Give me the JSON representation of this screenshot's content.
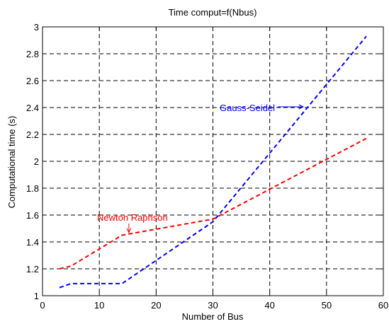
{
  "chart_data": {
    "type": "line",
    "title": "Time comput=f(Nbus)",
    "xlabel": "Number of Bus",
    "ylabel": "Computational time (s)",
    "xlim": [
      0,
      60
    ],
    "ylim": [
      1,
      3
    ],
    "xticks": [
      0,
      10,
      20,
      30,
      40,
      50,
      60
    ],
    "yticks": [
      1,
      1.2,
      1.4,
      1.6,
      1.8,
      2,
      2.2,
      2.4,
      2.6,
      2.8,
      3
    ],
    "grid": true,
    "series": [
      {
        "name": "Gauss-Seidel",
        "color": "#0000ff",
        "x": [
          3,
          5,
          14,
          30,
          57
        ],
        "y": [
          1.06,
          1.09,
          1.09,
          1.55,
          2.93
        ]
      },
      {
        "name": "Newton Raphson",
        "color": "#ff0000",
        "x": [
          3,
          5,
          14,
          30,
          57
        ],
        "y": [
          1.2,
          1.22,
          1.45,
          1.57,
          2.17
        ]
      }
    ],
    "annotations": [
      {
        "series": "Gauss-Seidel",
        "text": "Gauss-Seidel",
        "color": "#0000ff",
        "x": 45,
        "y": 2.4
      },
      {
        "series": "Newton Raphson",
        "text": "Newton Raphson",
        "color": "#ff0000",
        "x": 15.2,
        "y": 1.46
      }
    ]
  }
}
